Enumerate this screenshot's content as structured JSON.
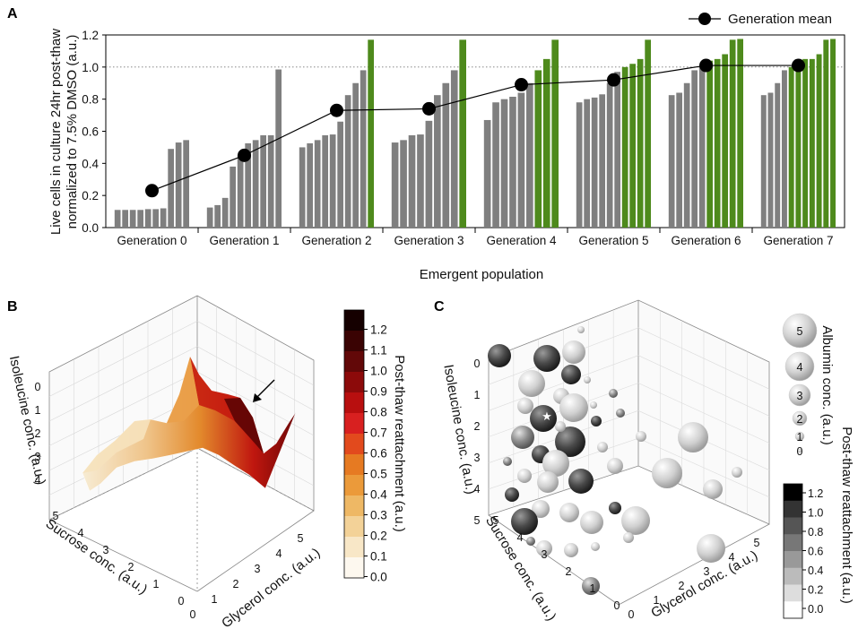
{
  "panels": [
    {
      "letter": "A",
      "chart_data": {
        "type": "bar",
        "ylabel_line1": "Live cells in culture 24hr post-thaw",
        "ylabel_line2": "normalized to 7.5% DMSO (a.u.)",
        "xlabel": "Emergent population",
        "ylim": [
          0,
          1.2
        ],
        "yticks": [
          "0.0",
          "0.2",
          "0.4",
          "0.6",
          "0.8",
          "1.0",
          "1.2"
        ],
        "reference_line": 1.0,
        "legend": "Generation mean",
        "colors": {
          "bar": "#7f7f7f",
          "green": "#4e8a1c",
          "mean": "#000000"
        },
        "groups": [
          {
            "label": "Generation 0",
            "mean": 0.23,
            "values": [
              0.11,
              0.11,
              0.11,
              0.11,
              0.115,
              0.115,
              0.12,
              0.49,
              0.53,
              0.545
            ],
            "green_count": 0
          },
          {
            "label": "Generation 1",
            "mean": 0.45,
            "values": [
              0.125,
              0.14,
              0.185,
              0.38,
              0.45,
              0.525,
              0.545,
              0.575,
              0.575,
              0.985
            ],
            "green_count": 0
          },
          {
            "label": "Generation 2",
            "mean": 0.73,
            "values": [
              0.5,
              0.525,
              0.545,
              0.575,
              0.58,
              0.66,
              0.825,
              0.9,
              0.98,
              1.17
            ],
            "green_count": 1
          },
          {
            "label": "Generation 3",
            "mean": 0.74,
            "values": [
              0.53,
              0.545,
              0.575,
              0.58,
              0.665,
              0.825,
              0.9,
              0.98,
              1.17
            ],
            "green_count": 1
          },
          {
            "label": "Generation 4",
            "mean": 0.89,
            "values": [
              0.67,
              0.78,
              0.8,
              0.815,
              0.84,
              0.9,
              0.98,
              1.05,
              1.17
            ],
            "green_count": 3
          },
          {
            "label": "Generation 5",
            "mean": 0.92,
            "values": [
              0.78,
              0.8,
              0.81,
              0.83,
              0.9,
              0.97,
              1.0,
              1.02,
              1.05,
              1.17
            ],
            "green_count": 4
          },
          {
            "label": "Generation 6",
            "mean": 1.01,
            "values": [
              0.825,
              0.84,
              0.9,
              0.98,
              1.0,
              1.04,
              1.05,
              1.08,
              1.17,
              1.175
            ],
            "green_count": 5
          },
          {
            "label": "Generation 7",
            "mean": 1.01,
            "values": [
              0.825,
              0.84,
              0.9,
              0.98,
              1.0,
              1.04,
              1.05,
              1.05,
              1.08,
              1.17,
              1.175
            ],
            "green_count": 7
          }
        ]
      }
    },
    {
      "letter": "B",
      "chart_data": {
        "type": "surface3d",
        "x_label": "Glycerol conc. (a.u.)",
        "y_label": "Sucrose conc. (a.u.)",
        "z_label": "Isoleucine conc. (a.u.)",
        "x_ticks": [
          "0",
          "1",
          "2",
          "3",
          "4",
          "5"
        ],
        "y_ticks": [
          "5",
          "4",
          "3",
          "2",
          "1",
          "0"
        ],
        "z_ticks": [
          "0",
          "1",
          "2",
          "3",
          "4"
        ],
        "colorbar_title": "Post-thaw reattachment (a.u.)",
        "colorbar_ticks": [
          "1.2",
          "1.1",
          "1.0",
          "0.9",
          "0.8",
          "0.7",
          "0.6",
          "0.5",
          "0.4",
          "0.3",
          "0.2",
          "0.1",
          "0.0"
        ],
        "colorbar_colors": [
          "#150000",
          "#3a0303",
          "#620808",
          "#8c0a0a",
          "#b80f0f",
          "#d82020",
          "#e24a1d",
          "#e67a22",
          "#eb9a3a",
          "#eeb865",
          "#f3d298",
          "#f8e7c7",
          "#fdf8ef"
        ],
        "annotation": "arrow marking maximum"
      }
    },
    {
      "letter": "C",
      "chart_data": {
        "type": "bubble3d",
        "x_label": "Glycerol conc. (a.u.)",
        "y_label": "Sucrose conc. (a.u.)",
        "z_label": "Isoleucine conc. (a.u.)",
        "x_ticks": [
          "0",
          "1",
          "2",
          "3",
          "4",
          "5"
        ],
        "y_ticks": [
          "5",
          "4",
          "3",
          "2",
          "1",
          "0"
        ],
        "z_ticks": [
          "0",
          "1",
          "2",
          "3",
          "4",
          "5"
        ],
        "size_legend_title": "Albumin conc. (a.u.)",
        "size_legend_values": [
          "5",
          "4",
          "3",
          "2",
          "1",
          "0"
        ],
        "colorbar_title": "Post-thaw reattachment (a.u.)",
        "colorbar_ticks": [
          "1.2",
          "1.0",
          "0.8",
          "0.6",
          "0.4",
          "0.2",
          "0.0"
        ],
        "colorbar_colors": [
          "#000000",
          "#333333",
          "#555555",
          "#777777",
          "#999999",
          "#bbbbbb",
          "#dddddd",
          "#ffffff"
        ],
        "annotation": "star marking best condition",
        "star": "★"
      }
    }
  ]
}
